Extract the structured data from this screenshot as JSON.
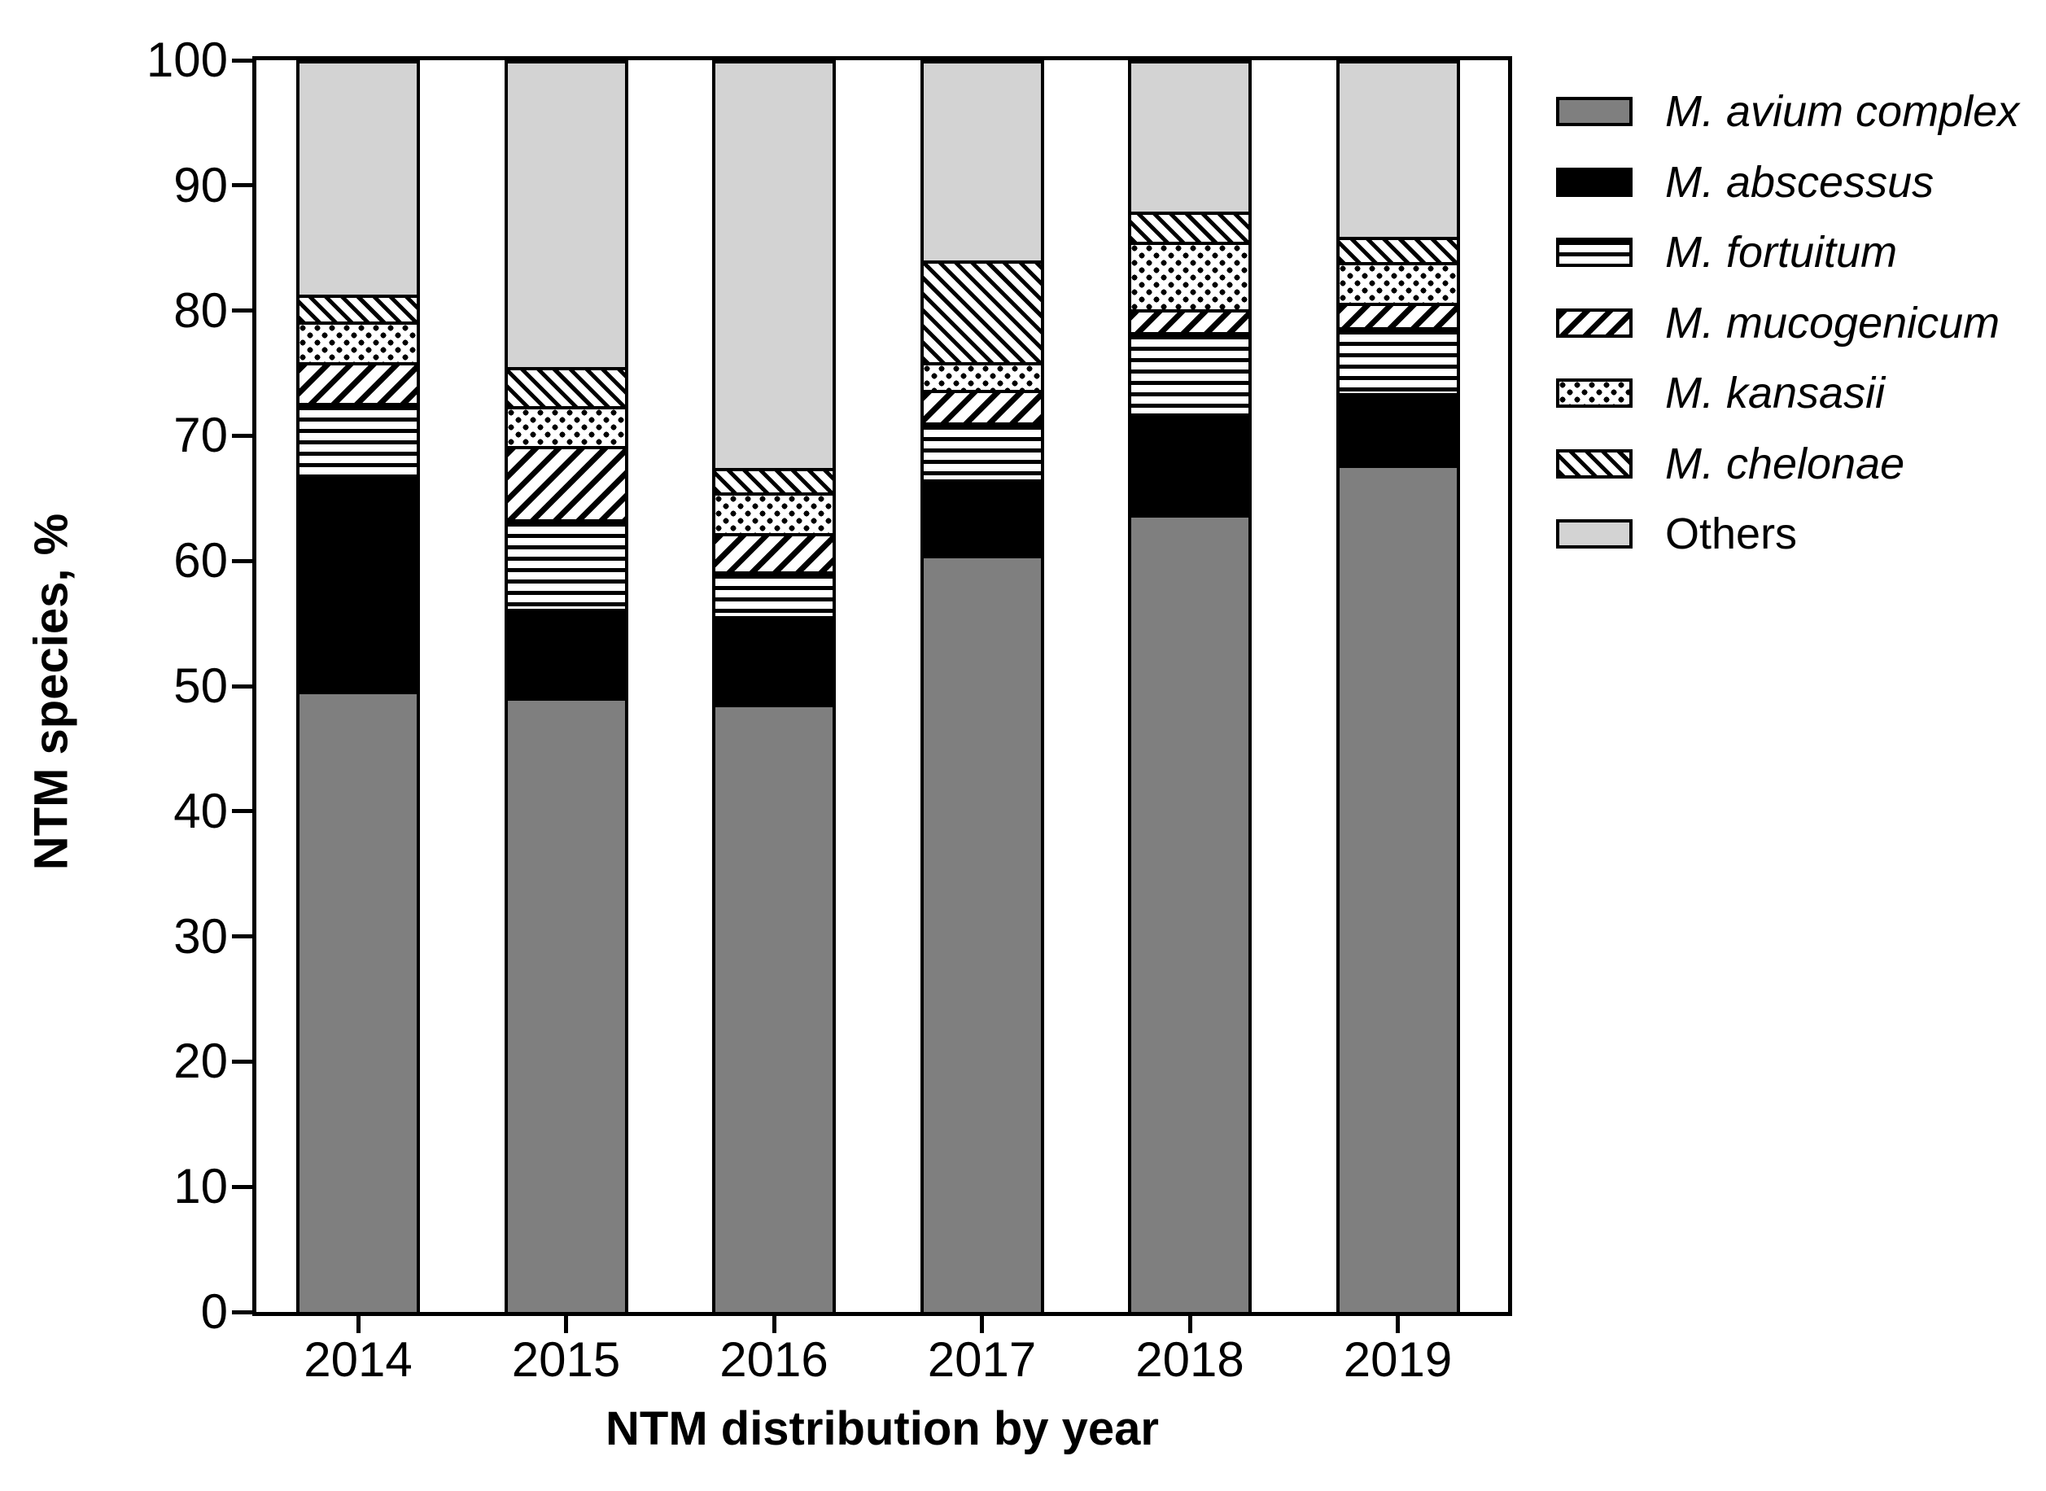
{
  "figure": {
    "y_axis_title": "NTM species, %",
    "x_axis_title": "NTM distribution by year"
  },
  "chart_data": {
    "type": "bar",
    "stacked": true,
    "title": "",
    "xlabel": "NTM distribution by year",
    "ylabel": "NTM species, %",
    "ylim": [
      0,
      100
    ],
    "y_ticks": [
      0,
      10,
      20,
      30,
      40,
      50,
      60,
      70,
      80,
      90,
      100
    ],
    "grid": false,
    "legend_position": "right",
    "categories": [
      "2014",
      "2015",
      "2016",
      "2017",
      "2018",
      "2019"
    ],
    "series": [
      {
        "name": "M. avium complex",
        "pattern": "solid-gray",
        "italic": true,
        "values": [
          49.6,
          49.1,
          48.6,
          60.5,
          63.7,
          67.7
        ]
      },
      {
        "name": "M. abscessus",
        "pattern": "solid-black",
        "italic": true,
        "values": [
          17.0,
          7.1,
          7.0,
          6.0,
          8.1,
          5.7
        ]
      },
      {
        "name": "M. fortuitum",
        "pattern": "hlines",
        "italic": true,
        "values": [
          6.0,
          7.1,
          3.6,
          4.6,
          6.5,
          5.3
        ]
      },
      {
        "name": "M. mucogenicum",
        "pattern": "fwd-hatch",
        "italic": true,
        "values": [
          3.3,
          5.9,
          3.0,
          2.6,
          1.8,
          1.9
        ]
      },
      {
        "name": "M. kansasii",
        "pattern": "dots",
        "italic": true,
        "values": [
          3.2,
          3.2,
          3.3,
          2.2,
          5.4,
          3.3
        ]
      },
      {
        "name": "M. chelonae",
        "pattern": "bwd-hatch",
        "italic": true,
        "values": [
          2.2,
          3.1,
          1.9,
          8.1,
          2.4,
          2.0
        ]
      },
      {
        "name": "Others",
        "pattern": "solid-lightgray",
        "italic": false,
        "values": [
          18.7,
          24.5,
          32.6,
          16.0,
          12.1,
          14.1
        ]
      }
    ],
    "colors": {
      "avium_gray": "#7f7f7f",
      "abscessus_black": "#000000",
      "others_gray": "#d3d3d3",
      "pattern_ink": "#000000",
      "background": "#ffffff"
    }
  }
}
